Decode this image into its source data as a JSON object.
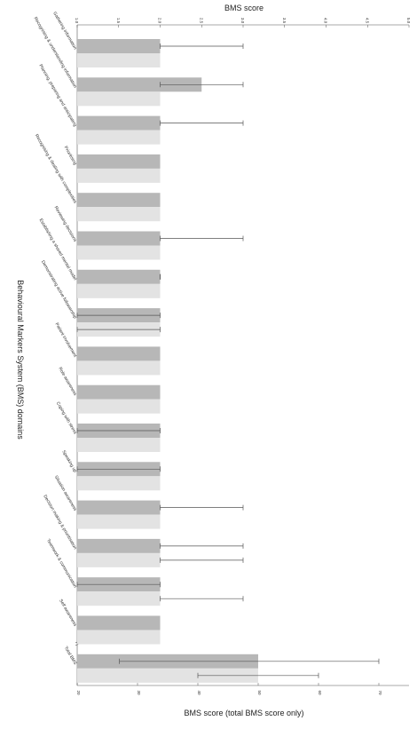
{
  "chart_data": {
    "type": "bar",
    "orientation": "horizontal",
    "grid": false,
    "top_axis": {
      "label": "BMS score",
      "range": [
        1.0,
        5.0
      ],
      "ticks": [
        "1.0",
        "1.5",
        "2.0",
        "2.5",
        "3.0",
        "3.5",
        "4.0",
        "4.5",
        "5.0"
      ]
    },
    "bottom_axis": {
      "label": "BMS score (total BMS score only)",
      "range": [
        20,
        75
      ],
      "ticks": [
        "20",
        "30",
        "40",
        "50",
        "60",
        "70"
      ]
    },
    "ylabel": "Behavioural Markers System (BMS) domains",
    "bar_colors": [
      "#b7b7b7",
      "#e3e3e3"
    ],
    "categories": [
      "Gathering information",
      "Recognising & understanding information",
      "Planning, preparing and anticipating",
      "Prioritising",
      "Recognising & dealing with complexities",
      "Reviewing decisions",
      "Establishing a shared mental model",
      "Demonstrating active followership",
      "Patient involvement",
      "Role awareness",
      "Coping with stress",
      "Speaking up",
      "Situation awareness",
      "Decision making & prioritisation",
      "Teamwork & communication",
      "Self awareness",
      "Total BMS"
    ],
    "series": [
      {
        "values": [
          2.0,
          2.5,
          2.0,
          2.0,
          2.0,
          2.0,
          2.0,
          2.0,
          2.0,
          2.0,
          2.0,
          2.0,
          2.0,
          2.0,
          2.0,
          2.0,
          50
        ],
        "error_low": [
          2.0,
          2.0,
          2.0,
          null,
          null,
          2.0,
          2.0,
          1.0,
          null,
          null,
          1.0,
          1.0,
          2.0,
          2.0,
          1.0,
          null,
          27
        ],
        "error_high": [
          3.0,
          3.0,
          3.0,
          null,
          null,
          3.0,
          2.0,
          2.0,
          null,
          null,
          2.0,
          2.0,
          3.0,
          3.0,
          2.0,
          null,
          70
        ]
      },
      {
        "values": [
          2.0,
          2.0,
          2.0,
          2.0,
          2.0,
          2.0,
          2.0,
          2.0,
          2.0,
          2.0,
          2.0,
          2.0,
          2.0,
          2.0,
          2.0,
          2.0,
          50
        ],
        "error_low": [
          null,
          null,
          null,
          null,
          null,
          null,
          null,
          1.0,
          null,
          null,
          null,
          null,
          null,
          2.0,
          2.0,
          null,
          40
        ],
        "error_high": [
          null,
          null,
          null,
          null,
          null,
          null,
          null,
          2.0,
          null,
          null,
          null,
          null,
          null,
          3.0,
          3.0,
          null,
          60
        ]
      }
    ]
  }
}
